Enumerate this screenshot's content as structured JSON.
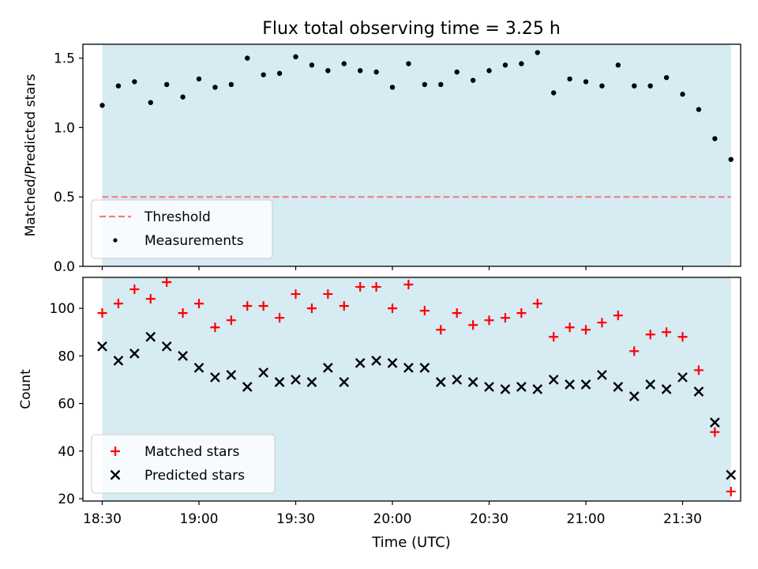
{
  "chart_data": [
    {
      "type": "scatter",
      "title": "Flux total observing time = 3.25 h",
      "ylabel": "Matched/Predicted stars",
      "xlabel": "",
      "xlim": [
        "18:24",
        "21:48"
      ],
      "ylim": [
        0,
        1.6
      ],
      "yticks": [
        0.0,
        0.5,
        1.0,
        1.5
      ],
      "ytick_labels": [
        "0.0",
        "0.5",
        "1.0",
        "1.5"
      ],
      "xticks": [
        "18:30",
        "19:00",
        "19:30",
        "20:00",
        "20:30",
        "21:00",
        "21:30"
      ],
      "show_xtick_labels": false,
      "shaded_span": [
        "18:30",
        "21:45"
      ],
      "shade_color": "#add8e6",
      "threshold": {
        "label": "Threshold",
        "value": 0.5,
        "color": "#f08080",
        "style": "dashed"
      },
      "legend": {
        "placement": "lower-left",
        "entries": [
          "Threshold",
          "Measurements"
        ]
      },
      "series": [
        {
          "name": "Measurements",
          "marker": "dot",
          "color": "#000000",
          "x": [
            "18:30",
            "18:35",
            "18:40",
            "18:45",
            "18:50",
            "18:55",
            "19:00",
            "19:05",
            "19:10",
            "19:15",
            "19:20",
            "19:25",
            "19:30",
            "19:35",
            "19:40",
            "19:45",
            "19:50",
            "19:55",
            "20:00",
            "20:05",
            "20:10",
            "20:15",
            "20:20",
            "20:25",
            "20:30",
            "20:35",
            "20:40",
            "20:45",
            "20:50",
            "20:55",
            "21:00",
            "21:05",
            "21:10",
            "21:15",
            "21:20",
            "21:25",
            "21:30",
            "21:35",
            "21:40",
            "21:45"
          ],
          "y": [
            1.16,
            1.3,
            1.33,
            1.18,
            1.31,
            1.22,
            1.35,
            1.29,
            1.31,
            1.5,
            1.38,
            1.39,
            1.51,
            1.45,
            1.41,
            1.46,
            1.41,
            1.4,
            1.29,
            1.46,
            1.31,
            1.31,
            1.4,
            1.34,
            1.41,
            1.45,
            1.46,
            1.54,
            1.25,
            1.35,
            1.33,
            1.3,
            1.45,
            1.3,
            1.3,
            1.36,
            1.24,
            1.13,
            0.92,
            0.77
          ]
        }
      ]
    },
    {
      "type": "scatter",
      "title": "",
      "ylabel": "Count",
      "xlabel": "Time (UTC)",
      "xlim": [
        "18:24",
        "21:48"
      ],
      "ylim": [
        19,
        113
      ],
      "yticks": [
        20,
        40,
        60,
        80,
        100
      ],
      "ytick_labels": [
        "20",
        "40",
        "60",
        "80",
        "100"
      ],
      "xticks": [
        "18:30",
        "19:00",
        "19:30",
        "20:00",
        "20:30",
        "21:00",
        "21:30"
      ],
      "show_xtick_labels": true,
      "shaded_span": [
        "18:30",
        "21:45"
      ],
      "shade_color": "#add8e6",
      "legend": {
        "placement": "lower-left",
        "entries": [
          "Matched stars",
          "Predicted stars"
        ]
      },
      "series": [
        {
          "name": "Matched stars",
          "marker": "plus",
          "color": "#ff0000",
          "x": [
            "18:30",
            "18:35",
            "18:40",
            "18:45",
            "18:50",
            "18:55",
            "19:00",
            "19:05",
            "19:10",
            "19:15",
            "19:20",
            "19:25",
            "19:30",
            "19:35",
            "19:40",
            "19:45",
            "19:50",
            "19:55",
            "20:00",
            "20:05",
            "20:10",
            "20:15",
            "20:20",
            "20:25",
            "20:30",
            "20:35",
            "20:40",
            "20:45",
            "20:50",
            "20:55",
            "21:00",
            "21:05",
            "21:10",
            "21:15",
            "21:20",
            "21:25",
            "21:30",
            "21:35",
            "21:40",
            "21:45"
          ],
          "y": [
            98,
            102,
            108,
            104,
            111,
            98,
            102,
            92,
            95,
            101,
            101,
            96,
            106,
            100,
            106,
            101,
            109,
            109,
            100,
            110,
            99,
            91,
            98,
            93,
            95,
            96,
            98,
            102,
            88,
            92,
            91,
            94,
            97,
            82,
            89,
            90,
            88,
            74,
            48,
            23
          ]
        },
        {
          "name": "Predicted stars",
          "marker": "x",
          "color": "#000000",
          "x": [
            "18:30",
            "18:35",
            "18:40",
            "18:45",
            "18:50",
            "18:55",
            "19:00",
            "19:05",
            "19:10",
            "19:15",
            "19:20",
            "19:25",
            "19:30",
            "19:35",
            "19:40",
            "19:45",
            "19:50",
            "19:55",
            "20:00",
            "20:05",
            "20:10",
            "20:15",
            "20:20",
            "20:25",
            "20:30",
            "20:35",
            "20:40",
            "20:45",
            "20:50",
            "20:55",
            "21:00",
            "21:05",
            "21:10",
            "21:15",
            "21:20",
            "21:25",
            "21:30",
            "21:35",
            "21:40",
            "21:45"
          ],
          "y": [
            84,
            78,
            81,
            88,
            84,
            80,
            75,
            71,
            72,
            67,
            73,
            69,
            70,
            69,
            75,
            69,
            77,
            78,
            77,
            75,
            75,
            69,
            70,
            69,
            67,
            66,
            67,
            66,
            70,
            68,
            68,
            72,
            67,
            63,
            68,
            66,
            71,
            65,
            52,
            30
          ]
        }
      ]
    }
  ]
}
